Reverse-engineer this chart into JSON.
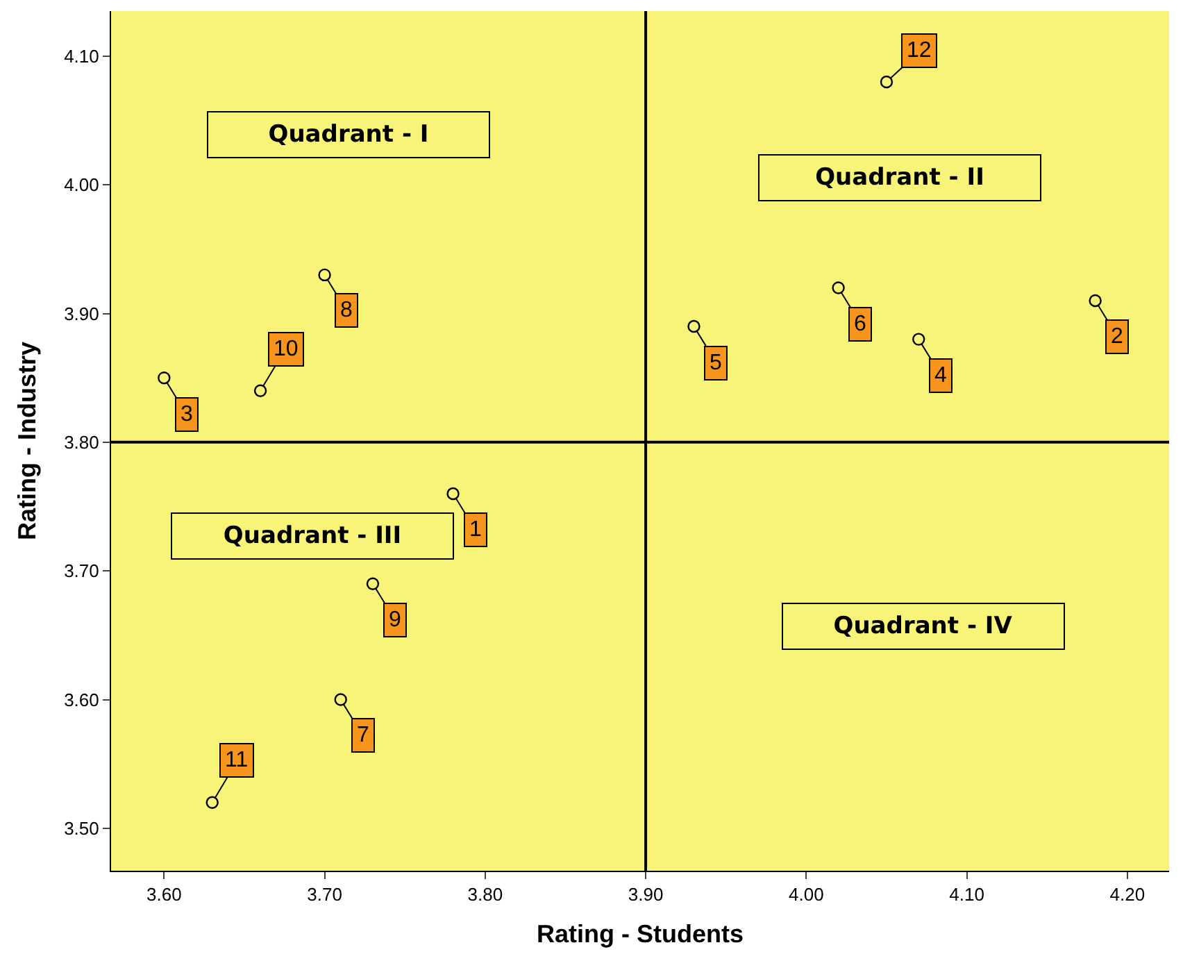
{
  "chart_data": {
    "type": "scatter",
    "xlabel": "Rating - Students",
    "ylabel": "Rating - Industry",
    "x": [
      3.78,
      4.18,
      3.6,
      4.07,
      3.93,
      4.02,
      3.71,
      3.7,
      3.73,
      3.66,
      3.63,
      4.05
    ],
    "series": [
      {
        "color": "#000000",
        "values": [
          3.76,
          3.91,
          3.85,
          3.88,
          3.89,
          3.92,
          3.6,
          3.93,
          3.69,
          3.84,
          3.52,
          4.08
        ]
      }
    ],
    "marker": "circle",
    "grid": false,
    "xlim": [
      3.567,
      4.226
    ],
    "ylim": [
      3.467,
      4.135
    ],
    "xticks": [
      {
        "value": 3.6,
        "label": "3.60"
      },
      {
        "value": 3.7,
        "label": "3.70"
      },
      {
        "value": 3.8,
        "label": "3.80"
      },
      {
        "value": 3.9,
        "label": "3.90"
      },
      {
        "value": 4.0,
        "label": "4.00"
      },
      {
        "value": 4.1,
        "label": "4.10"
      },
      {
        "value": 4.2,
        "label": "4.20"
      }
    ],
    "yticks": [
      {
        "value": 3.5,
        "label": "3.50"
      },
      {
        "value": 3.6,
        "label": "3.60"
      },
      {
        "value": 3.7,
        "label": "3.70"
      },
      {
        "value": 3.8,
        "label": "3.80"
      },
      {
        "value": 3.9,
        "label": "3.90"
      },
      {
        "value": 4.0,
        "label": "4.00"
      },
      {
        "value": 4.1,
        "label": "4.10"
      }
    ],
    "ref_lines": [
      {
        "axis": "x",
        "value": 3.9,
        "color": "#000000"
      },
      {
        "axis": "y",
        "value": 3.8,
        "color": "#000000"
      }
    ],
    "annotations": [
      {
        "text": "1",
        "x": 3.78,
        "y": 3.76
      },
      {
        "text": "2",
        "x": 4.18,
        "y": 3.91
      },
      {
        "text": "3",
        "x": 3.6,
        "y": 3.85
      },
      {
        "text": "4",
        "x": 4.07,
        "y": 3.88
      },
      {
        "text": "5",
        "x": 3.93,
        "y": 3.89
      },
      {
        "text": "6",
        "x": 4.02,
        "y": 3.92
      },
      {
        "text": "7",
        "x": 3.71,
        "y": 3.6
      },
      {
        "text": "8",
        "x": 3.7,
        "y": 3.93
      },
      {
        "text": "9",
        "x": 3.73,
        "y": 3.69
      },
      {
        "text": "10",
        "x": 3.66,
        "y": 3.84
      },
      {
        "text": "11",
        "x": 3.63,
        "y": 3.52
      },
      {
        "text": "12",
        "x": 4.05,
        "y": 4.08
      },
      "Quadrant - I",
      "Quadrant - II",
      "Quadrant - III",
      "Quadrant - IV"
    ]
  }
}
